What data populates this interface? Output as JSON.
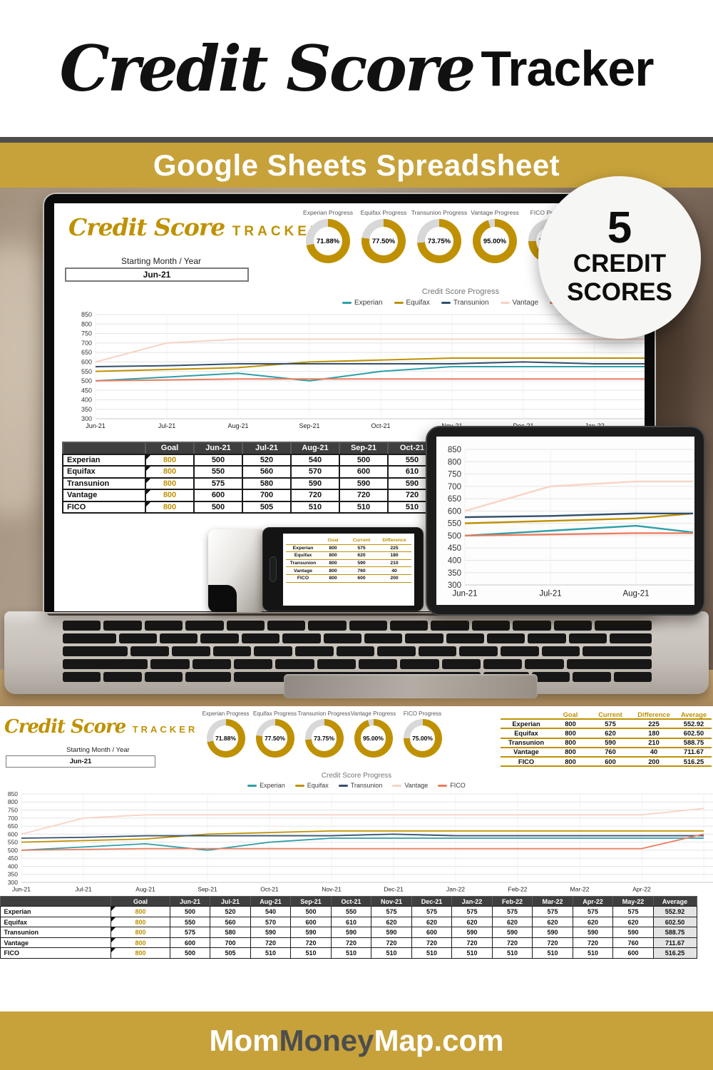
{
  "poster": {
    "title_script": "Credit Score",
    "title_bold": "Tracker",
    "banner_text": "Google Sheets Spreadsheet",
    "badge": {
      "number": "5",
      "line1": "CREDIT",
      "line2": "SCORES"
    },
    "footer": {
      "part1": "Mom",
      "part2": "Money",
      "part3": "Map.com"
    }
  },
  "app": {
    "title_script": "Credit Score",
    "title_caps": "TRACKER",
    "starting_month_label": "Starting Month / Year",
    "starting_month_value": "Jun-21"
  },
  "colors": {
    "gold_banner": "#c7a23b",
    "gold_accent": "#bf9102",
    "donut_rest": "#d8d8d8",
    "table_header": "#3f3f3f",
    "footer_dark_word": "#4d4d4d"
  },
  "chart_data": [
    {
      "type": "line",
      "title": "Credit Score Progress",
      "x": [
        "Jun-21",
        "Jul-21",
        "Aug-21",
        "Sep-21",
        "Oct-21",
        "Nov-21",
        "Dec-21",
        "Jan-22",
        "Feb-22",
        "Mar-22",
        "Apr-22",
        "May-22"
      ],
      "ylim": [
        300,
        850
      ],
      "ytick_step": 50,
      "grid": true,
      "legend_position": "top",
      "series": [
        {
          "name": "Experian",
          "color": "#2d9fa8",
          "values": [
            500,
            520,
            540,
            500,
            550,
            575,
            575,
            575,
            575,
            575,
            575,
            575
          ]
        },
        {
          "name": "Equifax",
          "color": "#bf9102",
          "values": [
            550,
            560,
            570,
            600,
            610,
            620,
            620,
            620,
            620,
            620,
            620,
            620
          ]
        },
        {
          "name": "Transunion",
          "color": "#33506e",
          "values": [
            575,
            580,
            590,
            590,
            590,
            590,
            600,
            590,
            590,
            590,
            590,
            590
          ]
        },
        {
          "name": "Vantage",
          "color": "#f8d3c5",
          "values": [
            600,
            700,
            720,
            720,
            720,
            720,
            720,
            720,
            720,
            720,
            720,
            760
          ]
        },
        {
          "name": "FICO",
          "color": "#ec7d60",
          "values": [
            500,
            505,
            510,
            510,
            510,
            510,
            510,
            510,
            510,
            510,
            510,
            600
          ]
        }
      ]
    },
    {
      "type": "pie",
      "variant": "donut",
      "items": [
        {
          "label": "Experian Progress",
          "value": 71.88,
          "text": "71.88%"
        },
        {
          "label": "Equifax Progress",
          "value": 77.5,
          "text": "77.50%"
        },
        {
          "label": "Transunion Progress",
          "value": 73.75,
          "text": "73.75%"
        },
        {
          "label": "Vantage Progress",
          "value": 95.0,
          "text": "95.00%"
        },
        {
          "label": "FICO Progress",
          "value": 75.0,
          "text": "75.00%"
        }
      ]
    }
  ],
  "summary_table": {
    "col_goal": "Goal",
    "col_current": "Current",
    "col_difference": "Difference",
    "col_average": "Average",
    "rows": [
      {
        "label": "Experian",
        "goal": "800",
        "current": "575",
        "difference": "225",
        "average": "552.92"
      },
      {
        "label": "Equifax",
        "goal": "800",
        "current": "620",
        "difference": "180",
        "average": "602.50"
      },
      {
        "label": "Transunion",
        "goal": "800",
        "current": "590",
        "difference": "210",
        "average": "588.75"
      },
      {
        "label": "Vantage",
        "goal": "800",
        "current": "760",
        "difference": "40",
        "average": "711.67"
      },
      {
        "label": "FICO",
        "goal": "800",
        "current": "600",
        "difference": "200",
        "average": "516.25"
      }
    ]
  },
  "monthly_table": {
    "col_goal": "Goal",
    "col_average": "Average",
    "months": [
      "Jun-21",
      "Jul-21",
      "Aug-21",
      "Sep-21",
      "Oct-21",
      "Nov-21",
      "Dec-21",
      "Jan-22",
      "Feb-22",
      "Mar-22",
      "Apr-22",
      "May-22"
    ],
    "rows": [
      {
        "label": "Experian",
        "goal": "800",
        "values": [
          "500",
          "520",
          "540",
          "500",
          "550",
          "575",
          "575",
          "575",
          "575",
          "575",
          "575",
          "575"
        ],
        "average": "552.92"
      },
      {
        "label": "Equifax",
        "goal": "800",
        "values": [
          "550",
          "560",
          "570",
          "600",
          "610",
          "620",
          "620",
          "620",
          "620",
          "620",
          "620",
          "620"
        ],
        "average": "602.50"
      },
      {
        "label": "Transunion",
        "goal": "800",
        "values": [
          "575",
          "580",
          "590",
          "590",
          "590",
          "590",
          "600",
          "590",
          "590",
          "590",
          "590",
          "590"
        ],
        "average": "588.75"
      },
      {
        "label": "Vantage",
        "goal": "800",
        "values": [
          "600",
          "700",
          "720",
          "720",
          "720",
          "720",
          "720",
          "720",
          "720",
          "720",
          "720",
          "760"
        ],
        "average": "711.67"
      },
      {
        "label": "FICO",
        "goal": "800",
        "values": [
          "500",
          "505",
          "510",
          "510",
          "510",
          "510",
          "510",
          "510",
          "510",
          "510",
          "510",
          "600"
        ],
        "average": "516.25"
      }
    ]
  }
}
